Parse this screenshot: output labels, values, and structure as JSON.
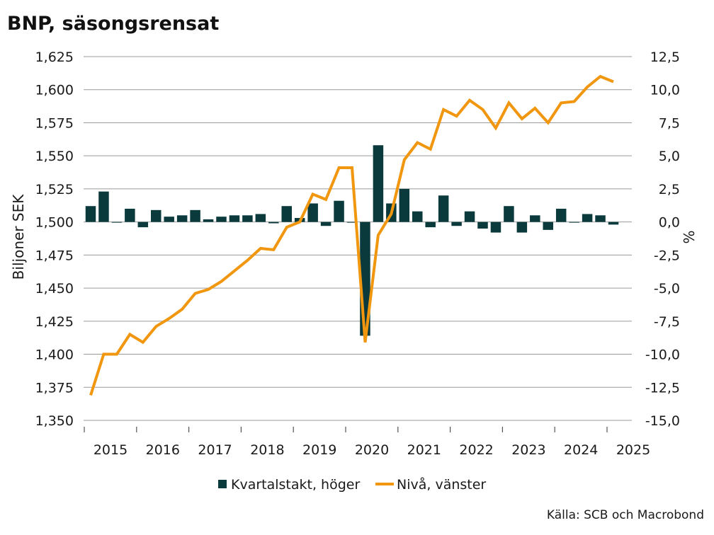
{
  "chart_data": {
    "type": "bar+line",
    "title": "BNP, säsongsrensat",
    "ylabel_left": "Biljoner SEK",
    "ylabel_right": "%",
    "source": "Källa: SCB och Macrobond",
    "colors": {
      "bars": "#0b3a3d",
      "line": "#f0960f"
    },
    "left_axis": {
      "ylim": [
        1350,
        1625
      ],
      "ticks": [
        1350,
        1375,
        1400,
        1425,
        1450,
        1475,
        1500,
        1525,
        1550,
        1575,
        1600,
        1625
      ],
      "tick_labels": [
        "1,350",
        "1,375",
        "1,400",
        "1,425",
        "1,450",
        "1,475",
        "1,500",
        "1,525",
        "1,550",
        "1,575",
        "1,600",
        "1,625"
      ]
    },
    "right_axis": {
      "ylim": [
        -15,
        12.5
      ],
      "ticks": [
        -15,
        -12.5,
        -10,
        -7.5,
        -5,
        -2.5,
        0,
        2.5,
        5,
        7.5,
        10,
        12.5
      ],
      "tick_labels": [
        "-15,0",
        "-12,5",
        "-10,0",
        "-7,5",
        "-5,0",
        "-2,5",
        "0,0",
        "2,5",
        "5,0",
        "7,5",
        "10,0",
        "12,5"
      ]
    },
    "x_axis": {
      "year_labels": [
        "2015",
        "2016",
        "2017",
        "2018",
        "2019",
        "2020",
        "2021",
        "2022",
        "2023",
        "2024",
        "2025"
      ],
      "first_quarter": "2015Q1"
    },
    "legend": [
      {
        "name": "Kvartalstakt, höger",
        "kind": "bar"
      },
      {
        "name": "Nivå, vänster",
        "kind": "line"
      }
    ],
    "series": [
      {
        "name": "Kvartalstakt, höger",
        "type": "bar",
        "axis": "right",
        "values": [
          1.2,
          2.3,
          0.0,
          1.0,
          -0.4,
          0.9,
          0.4,
          0.5,
          0.9,
          0.2,
          0.4,
          0.5,
          0.5,
          0.6,
          -0.1,
          1.2,
          0.3,
          1.4,
          -0.3,
          1.6,
          0.0,
          -8.6,
          5.8,
          1.4,
          2.5,
          0.8,
          -0.4,
          2.0,
          -0.3,
          0.8,
          -0.5,
          -0.8,
          1.2,
          -0.8,
          0.5,
          -0.6,
          1.0,
          0.0,
          0.6,
          0.5,
          -0.2
        ]
      },
      {
        "name": "Nivå, vänster",
        "type": "line",
        "axis": "left",
        "values": [
          1369,
          1400,
          1400,
          1415,
          1409,
          1421,
          1427,
          1434,
          1446,
          1449,
          1455,
          1463,
          1471,
          1480,
          1479,
          1496,
          1500,
          1521,
          1517,
          1541,
          1541,
          1409,
          1490,
          1506,
          1547,
          1560,
          1555,
          1585,
          1580,
          1592,
          1585,
          1571,
          1590,
          1578,
          1586,
          1575,
          1590,
          1591,
          1602,
          1610,
          1606
        ]
      }
    ]
  }
}
